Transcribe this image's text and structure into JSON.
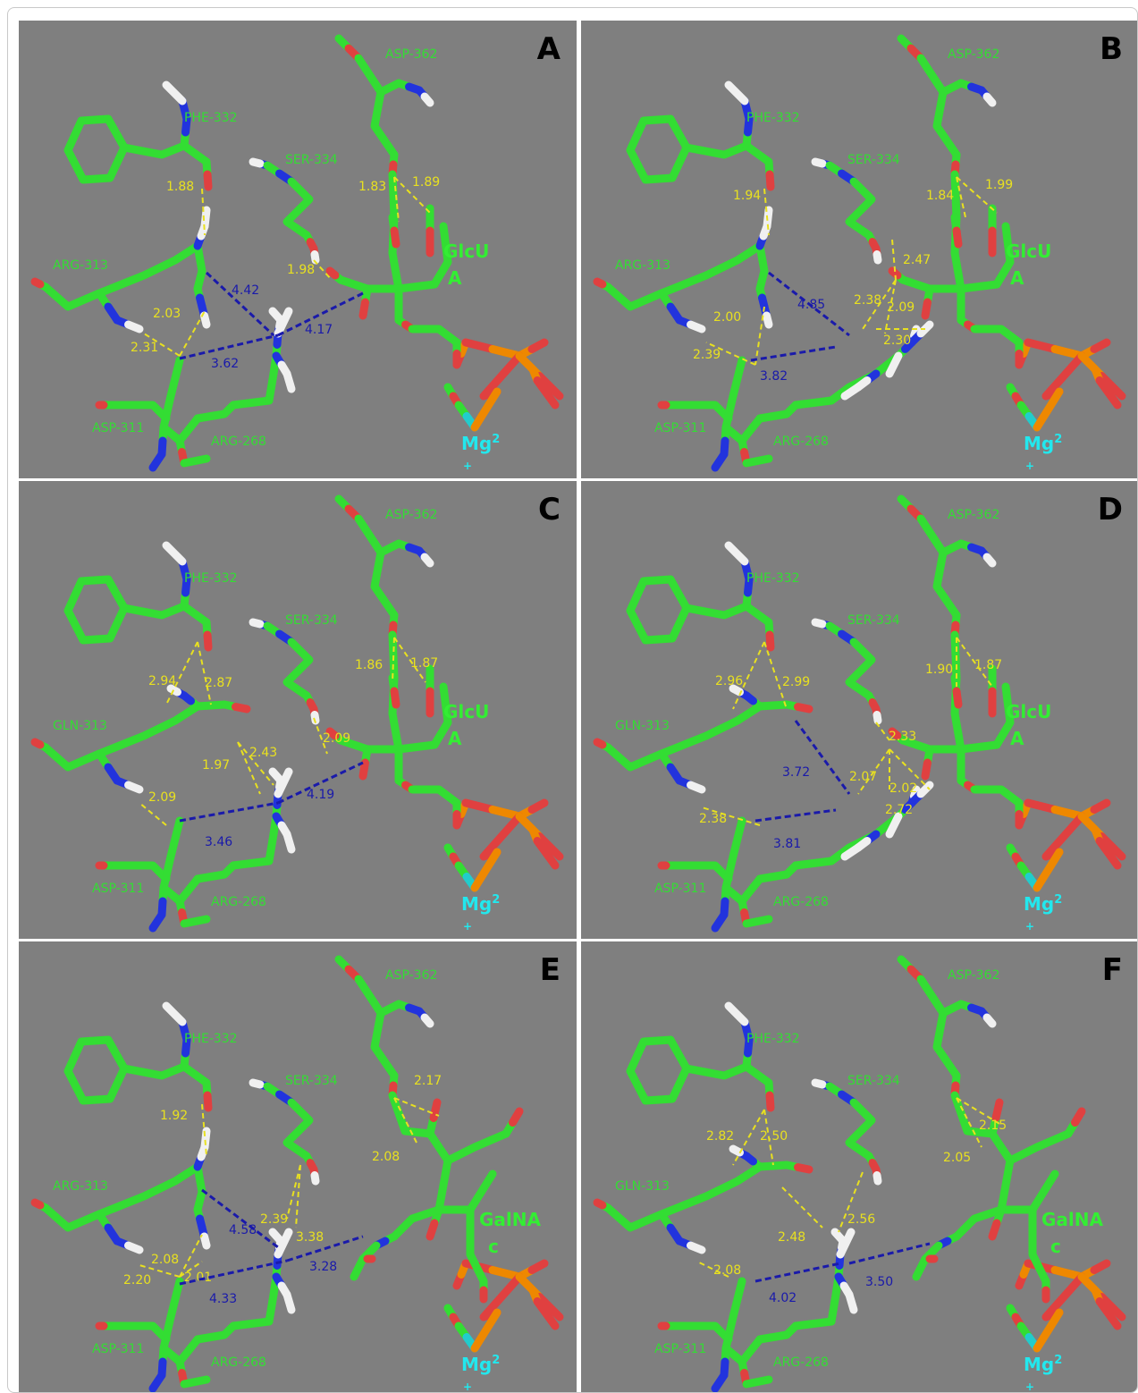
{
  "colors": {
    "background": "#7f7f7f",
    "carbon": "#33dd33",
    "oxygen": "#e04040",
    "nitrogen": "#2233dd",
    "hydrogen": "#f0f0f0",
    "phosphorus": "#ee8800",
    "magnesium": "#22cccc",
    "label_residue": "#33dd33",
    "label_hbond": "#e8e020",
    "label_distance": "#1a1aaa",
    "label_sugar": "#33ee33",
    "label_mg": "#22e8ee"
  },
  "panels": [
    {
      "letter": "A",
      "res313": "ARG-313",
      "sugar": [
        "GlcU",
        "A"
      ],
      "arg268_variant": "up",
      "residues": {
        "asp362": "ASP-362",
        "phe332": "PHE-332",
        "ser334": "SER-334",
        "asp311": "ASP-311",
        "arg268": "ARG-268"
      },
      "mg": [
        "Mg",
        "2",
        "+"
      ],
      "hbonds": [
        {
          "label": "1.88"
        },
        {
          "label": "1.83"
        },
        {
          "label": "1.89"
        },
        {
          "label": "1.98"
        },
        {
          "label": "2.03"
        },
        {
          "label": "2.31"
        }
      ],
      "distances": [
        {
          "label": "4.42"
        },
        {
          "label": "4.17"
        },
        {
          "label": "3.62"
        }
      ]
    },
    {
      "letter": "B",
      "res313": "ARG-313",
      "sugar": [
        "GlcU",
        "A"
      ],
      "arg268_variant": "diag",
      "residues": {
        "asp362": "ASP-362",
        "phe332": "PHE-332",
        "ser334": "SER-334",
        "asp311": "ASP-311",
        "arg268": "ARG-268"
      },
      "mg": [
        "Mg",
        "2",
        "+"
      ],
      "hbonds": [
        {
          "label": "1.94"
        },
        {
          "label": "1.84"
        },
        {
          "label": "1.99"
        },
        {
          "label": "2.47"
        },
        {
          "label": "2.38"
        },
        {
          "label": "2.09"
        },
        {
          "label": "2.30"
        },
        {
          "label": "2.00"
        },
        {
          "label": "2.39"
        }
      ],
      "distances": [
        {
          "label": "4.85"
        },
        {
          "label": "3.82"
        }
      ]
    },
    {
      "letter": "C",
      "res313": "GLN-313",
      "sugar": [
        "GlcU",
        "A"
      ],
      "arg268_variant": "up",
      "residues": {
        "asp362": "ASP-362",
        "phe332": "PHE-332",
        "ser334": "SER-334",
        "asp311": "ASP-311",
        "arg268": "ARG-268"
      },
      "mg": [
        "Mg",
        "2",
        "+"
      ],
      "hbonds": [
        {
          "label": "2.94"
        },
        {
          "label": "2.87"
        },
        {
          "label": "1.86"
        },
        {
          "label": "1.87"
        },
        {
          "label": "2.09"
        },
        {
          "label": "1.97"
        },
        {
          "label": "2.43"
        },
        {
          "label": "2.09"
        }
      ],
      "distances": [
        {
          "label": "4.19"
        },
        {
          "label": "3.46"
        }
      ]
    },
    {
      "letter": "D",
      "res313": "GLN-313",
      "sugar": [
        "GlcU",
        "A"
      ],
      "arg268_variant": "diag",
      "residues": {
        "asp362": "ASP-362",
        "phe332": "PHE-332",
        "ser334": "SER-334",
        "asp311": "ASP-311",
        "arg268": "ARG-268"
      },
      "mg": [
        "Mg",
        "2",
        "+"
      ],
      "hbonds": [
        {
          "label": "2.96"
        },
        {
          "label": "2.99"
        },
        {
          "label": "1.90"
        },
        {
          "label": "1.87"
        },
        {
          "label": "2.33"
        },
        {
          "label": "2.07"
        },
        {
          "label": "2.02"
        },
        {
          "label": "2.72"
        },
        {
          "label": "2.38"
        }
      ],
      "distances": [
        {
          "label": "3.72"
        },
        {
          "label": "3.81"
        }
      ]
    },
    {
      "letter": "E",
      "res313": "ARG-313",
      "sugar": [
        "GalNA",
        "c"
      ],
      "arg268_variant": "up",
      "residues": {
        "asp362": "ASP-362",
        "phe332": "PHE-332",
        "ser334": "SER-334",
        "asp311": "ASP-311",
        "arg268": "ARG-268"
      },
      "mg": [
        "Mg",
        "2",
        "+"
      ],
      "hbonds": [
        {
          "label": "1.92"
        },
        {
          "label": "2.17"
        },
        {
          "label": "2.08"
        },
        {
          "label": "2.39"
        },
        {
          "label": "3.38"
        },
        {
          "label": "2.08"
        },
        {
          "label": "2.01"
        },
        {
          "label": "2.20"
        }
      ],
      "distances": [
        {
          "label": "4.58"
        },
        {
          "label": "3.28"
        },
        {
          "label": "4.33"
        }
      ]
    },
    {
      "letter": "F",
      "res313": "GLN-313",
      "sugar": [
        "GalNA",
        "c"
      ],
      "arg268_variant": "up",
      "residues": {
        "asp362": "ASP-362",
        "phe332": "PHE-332",
        "ser334": "SER-334",
        "asp311": "ASP-311",
        "arg268": "ARG-268"
      },
      "mg": [
        "Mg",
        "2",
        "+"
      ],
      "hbonds": [
        {
          "label": "2.82"
        },
        {
          "label": "2.50"
        },
        {
          "label": "2.15"
        },
        {
          "label": "2.05"
        },
        {
          "label": "2.48"
        },
        {
          "label": "2.56"
        },
        {
          "label": "2.08"
        }
      ],
      "distances": [
        {
          "label": "4.02"
        },
        {
          "label": "3.50"
        }
      ]
    }
  ]
}
